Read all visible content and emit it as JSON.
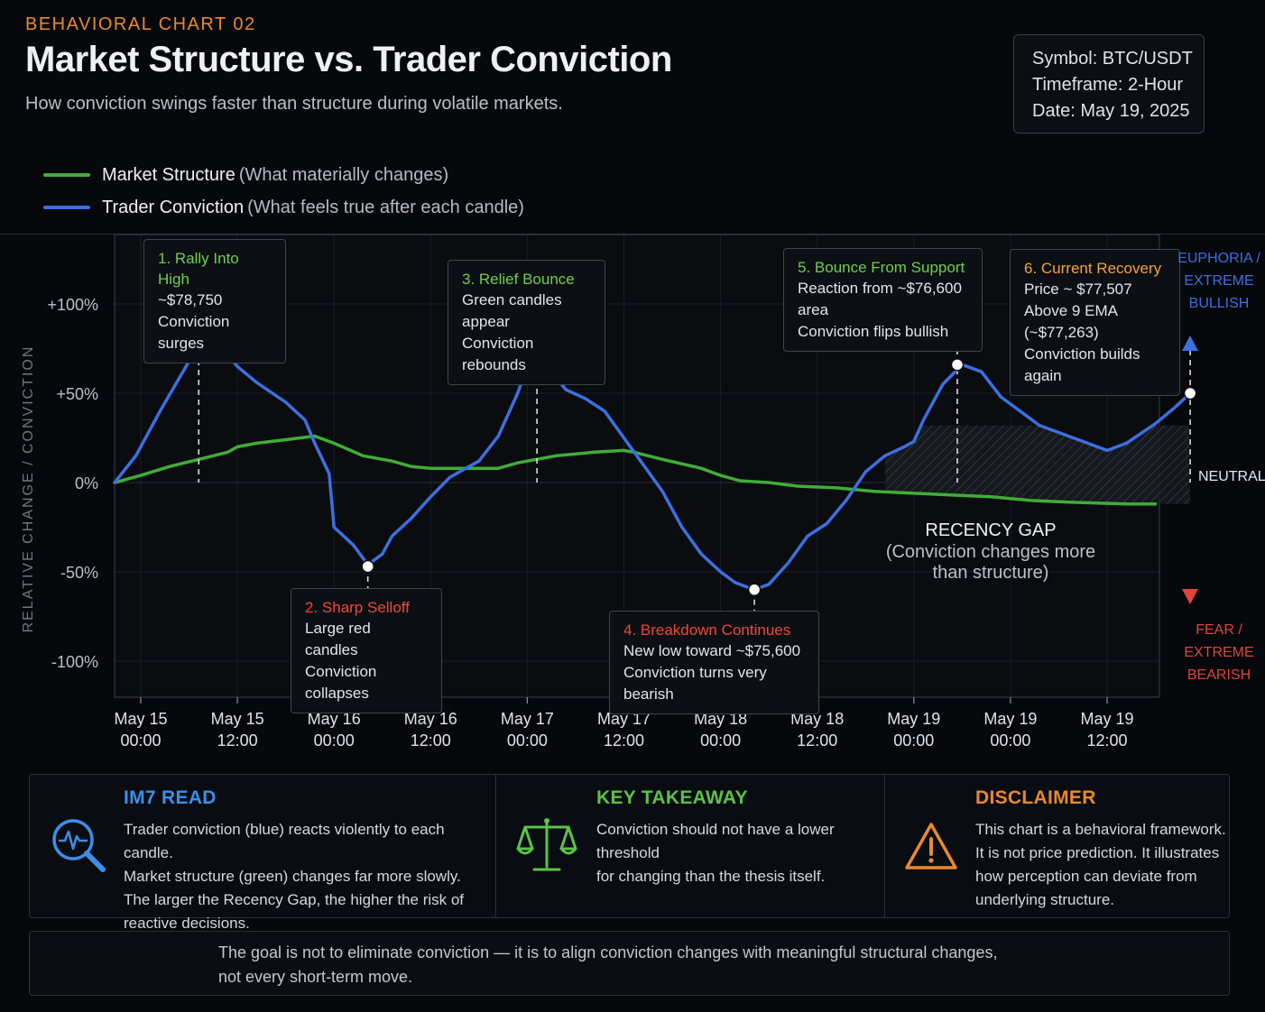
{
  "header": {
    "eyebrow": "BEHAVIORAL CHART 02",
    "title": "Market Structure vs. Trader Conviction",
    "subtitle": "How conviction swings faster than structure during volatile markets."
  },
  "meta": {
    "symbol": "Symbol: BTC/USDT",
    "timeframe": "Timeframe: 2-Hour",
    "date": "Date: May 19, 2025"
  },
  "legend": [
    {
      "name": "Market Structure",
      "desc": "(What materially changes)",
      "color": "#3fae36"
    },
    {
      "name": "Trader Conviction",
      "desc": "(What feels true after each candle)",
      "color": "#3d6fe0"
    }
  ],
  "chart_data": {
    "type": "line",
    "ylabel": "RELATIVE CHANGE / CONVICTION",
    "ylim": [
      -120,
      140
    ],
    "y_ticks": [
      {
        "value": 100,
        "label": "+100%"
      },
      {
        "value": 50,
        "label": "+50%"
      },
      {
        "value": 0,
        "label": "0%"
      },
      {
        "value": -50,
        "label": "-50%"
      },
      {
        "value": -100,
        "label": "-100%"
      }
    ],
    "x_ticks": [
      {
        "date": "May 15",
        "time": "00:00"
      },
      {
        "date": "May 15",
        "time": "12:00"
      },
      {
        "date": "May 16",
        "time": "00:00"
      },
      {
        "date": "May 16",
        "time": "12:00"
      },
      {
        "date": "May 17",
        "time": "00:00"
      },
      {
        "date": "May 17",
        "time": "12:00"
      },
      {
        "date": "May 18",
        "time": "00:00"
      },
      {
        "date": "May 18",
        "time": "12:00"
      },
      {
        "date": "May 19",
        "time": "00:00"
      },
      {
        "date": "May 19",
        "time": "00:00"
      },
      {
        "date": "May 19",
        "time": "12:00"
      }
    ],
    "series": [
      {
        "name": "Market Structure",
        "color": "#3fae36",
        "points": [
          [
            -0.27,
            0
          ],
          [
            0,
            4
          ],
          [
            0.3,
            9
          ],
          [
            0.6,
            13
          ],
          [
            0.9,
            17
          ],
          [
            1.0,
            20
          ],
          [
            1.2,
            22
          ],
          [
            1.5,
            24
          ],
          [
            1.8,
            26
          ],
          [
            2.0,
            22
          ],
          [
            2.3,
            15
          ],
          [
            2.6,
            12
          ],
          [
            2.8,
            9
          ],
          [
            3.0,
            8
          ],
          [
            3.4,
            8
          ],
          [
            3.6,
            8
          ],
          [
            3.7,
            8
          ],
          [
            3.9,
            11
          ],
          [
            4.0,
            12
          ],
          [
            4.3,
            15
          ],
          [
            4.7,
            17
          ],
          [
            5.0,
            18
          ],
          [
            5.1,
            17
          ],
          [
            5.4,
            13
          ],
          [
            5.8,
            8
          ],
          [
            6.0,
            4
          ],
          [
            6.2,
            1
          ],
          [
            6.5,
            0
          ],
          [
            6.8,
            -2
          ],
          [
            7.2,
            -3
          ],
          [
            7.6,
            -5
          ],
          [
            8.0,
            -6
          ],
          [
            8.4,
            -7
          ],
          [
            8.8,
            -8
          ],
          [
            9.2,
            -10
          ],
          [
            9.6,
            -11
          ],
          [
            10.2,
            -12
          ],
          [
            10.5,
            -12
          ]
        ]
      },
      {
        "name": "Trader Conviction",
        "color": "#3d6fe0",
        "points": [
          [
            -0.27,
            0
          ],
          [
            -0.05,
            15
          ],
          [
            0.2,
            40
          ],
          [
            0.5,
            68
          ],
          [
            0.7,
            78
          ],
          [
            0.8,
            78
          ],
          [
            1.0,
            65
          ],
          [
            1.2,
            56
          ],
          [
            1.5,
            45
          ],
          [
            1.7,
            35
          ],
          [
            1.8,
            22
          ],
          [
            1.95,
            5
          ],
          [
            2.0,
            -25
          ],
          [
            2.2,
            -35
          ],
          [
            2.35,
            -46
          ],
          [
            2.5,
            -40
          ],
          [
            2.6,
            -30
          ],
          [
            2.8,
            -20
          ],
          [
            3.0,
            -8
          ],
          [
            3.2,
            3
          ],
          [
            3.5,
            12
          ],
          [
            3.7,
            26
          ],
          [
            3.9,
            50
          ],
          [
            4.0,
            65
          ],
          [
            4.2,
            65
          ],
          [
            4.4,
            52
          ],
          [
            4.6,
            47
          ],
          [
            4.8,
            40
          ],
          [
            5.0,
            25
          ],
          [
            5.2,
            10
          ],
          [
            5.4,
            -5
          ],
          [
            5.6,
            -25
          ],
          [
            5.8,
            -40
          ],
          [
            6.0,
            -50
          ],
          [
            6.15,
            -56
          ],
          [
            6.35,
            -60
          ],
          [
            6.5,
            -57
          ],
          [
            6.7,
            -45
          ],
          [
            6.9,
            -30
          ],
          [
            7.1,
            -23
          ],
          [
            7.3,
            -10
          ],
          [
            7.5,
            6
          ],
          [
            7.7,
            15
          ],
          [
            7.9,
            20
          ],
          [
            8.0,
            23
          ],
          [
            8.1,
            35
          ],
          [
            8.3,
            55
          ],
          [
            8.5,
            66
          ],
          [
            8.7,
            62
          ],
          [
            8.9,
            48
          ],
          [
            9.1,
            40
          ],
          [
            9.3,
            32
          ],
          [
            9.6,
            26
          ],
          [
            9.8,
            22
          ],
          [
            10.0,
            18
          ],
          [
            10.2,
            22
          ],
          [
            10.5,
            33
          ],
          [
            10.7,
            42
          ],
          [
            10.86,
            50
          ]
        ]
      }
    ],
    "key_points": [
      {
        "x": 0.6,
        "y": 78
      },
      {
        "x": 2.35,
        "y": -47
      },
      {
        "x": 4.1,
        "y": 66
      },
      {
        "x": 6.35,
        "y": -60
      },
      {
        "x": 8.45,
        "y": 66
      },
      {
        "x": 10.86,
        "y": 50
      }
    ],
    "gap_region": {
      "x_start": 7.7,
      "x_end": 10.86,
      "y_top": 32
    },
    "grid": true
  },
  "callouts": [
    {
      "title": "1. Rally Into High",
      "lines": [
        "~$78,750",
        "Conviction surges"
      ],
      "color": "#6ed04a"
    },
    {
      "title": "2. Sharp Selloff",
      "lines": [
        "Large red candles",
        "Conviction collapses"
      ],
      "color": "#f0473c"
    },
    {
      "title": "3. Relief Bounce",
      "lines": [
        "Green candles appear",
        "Conviction rebounds"
      ],
      "color": "#6ed04a"
    },
    {
      "title": "4. Breakdown Continues",
      "lines": [
        "New low toward ~$75,600",
        "Conviction turns very bearish"
      ],
      "color": "#f0473c"
    },
    {
      "title": "5. Bounce From Support",
      "lines": [
        "Reaction from ~$76,600 area",
        "Conviction flips bullish"
      ],
      "color": "#6ed04a"
    },
    {
      "title": "6. Current Recovery",
      "lines": [
        "Price ~ $77,507",
        "Above 9 EMA (~$77,263)",
        "Conviction builds again"
      ],
      "color": "#f2a33a"
    }
  ],
  "recency_gap": {
    "title": "RECENCY GAP",
    "line1": "(Conviction changes more",
    "line2": "than structure)"
  },
  "sentiment_scale": {
    "top": [
      "EUPHORIA /",
      "EXTREME",
      "BULLISH"
    ],
    "middle": "NEUTRAL",
    "bottom": [
      "FEAR /",
      "EXTREME",
      "BEARISH"
    ],
    "top_color": "#3d6fe0",
    "bottom_color": "#e0443a"
  },
  "panel": {
    "im7": {
      "title": "IM7 READ",
      "color": "#3d8ee8",
      "icon": "magnifier-pulse-icon",
      "lines": [
        "Trader conviction (blue) reacts violently to each candle.",
        "Market structure (green) changes far more slowly.",
        "The larger the Recency Gap, the higher the risk of",
        "reactive decisions."
      ]
    },
    "takeaway": {
      "title": "KEY TAKEAWAY",
      "color": "#5cc24a",
      "icon": "balance-scale-icon",
      "lines": [
        "Conviction should not have a lower threshold",
        "for changing than the thesis itself."
      ]
    },
    "disclaimer": {
      "title": "DISCLAIMER",
      "color": "#e98a2c",
      "icon": "warning-triangle-icon",
      "lines": [
        "This chart is a behavioral framework.",
        "It is not price prediction. It illustrates",
        "how perception can deviate from",
        "underlying structure."
      ]
    }
  },
  "footer": {
    "line1": "The goal is not to eliminate conviction — it is to align conviction changes with meaningful structural changes,",
    "line2": "not every short-term move."
  }
}
